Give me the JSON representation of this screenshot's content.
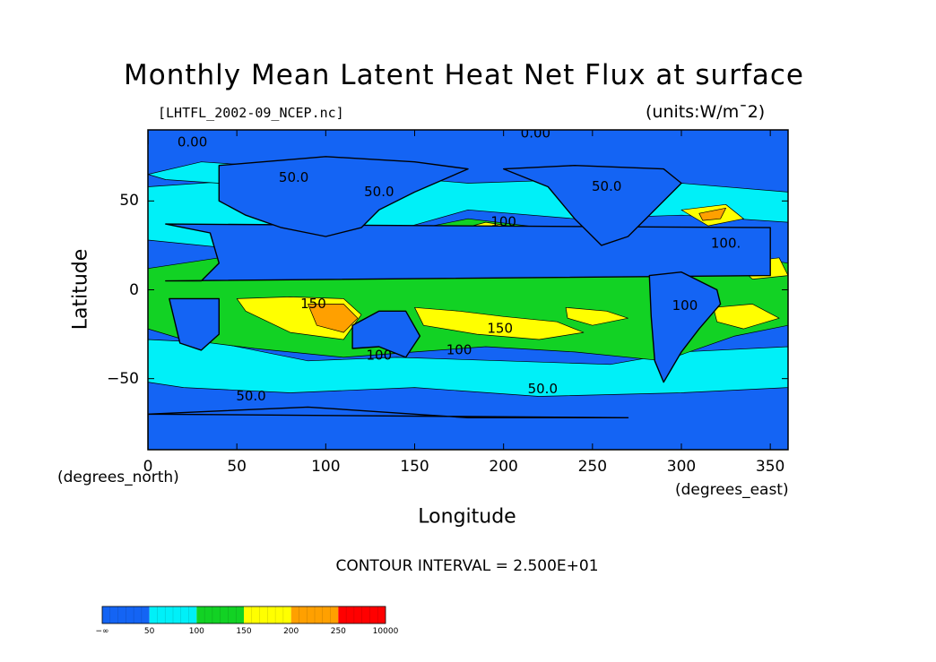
{
  "chart_data": {
    "type": "heatmap",
    "title": "Monthly Mean Latent Heat Net Flux at surface",
    "subtitle": "[LHTFL_2002-09_NCEP.nc]",
    "units": "(units:W/m¯2)",
    "xlabel": "Longitude",
    "ylabel": "Latitude",
    "x_unit_label": "(degrees_east)",
    "y_unit_label": "(degrees_north)",
    "xlim": [
      0,
      360
    ],
    "ylim": [
      -90,
      90
    ],
    "x_ticks": [
      0,
      50,
      100,
      150,
      200,
      250,
      300,
      350
    ],
    "x_tick_labels": [
      "0",
      "50",
      "100",
      "150",
      "200",
      "250",
      "300",
      "350"
    ],
    "y_ticks": [
      50,
      0,
      -50
    ],
    "y_tick_labels": [
      "50",
      "0",
      "−50"
    ],
    "contour_interval": "CONTOUR INTERVAL = 2.500E+01",
    "contour_labels": [
      {
        "text": "0.00",
        "lon": 25,
        "lat": 83
      },
      {
        "text": "0.00",
        "lon": 218,
        "lat": 88
      },
      {
        "text": "50.0",
        "lon": 82,
        "lat": 63
      },
      {
        "text": "50.0",
        "lon": 130,
        "lat": 55
      },
      {
        "text": "50.0",
        "lon": 258,
        "lat": 58
      },
      {
        "text": "100",
        "lon": 200,
        "lat": 38
      },
      {
        "text": "100.",
        "lon": 325,
        "lat": 26
      },
      {
        "text": "150",
        "lon": 93,
        "lat": -8
      },
      {
        "text": "150",
        "lon": 198,
        "lat": -22
      },
      {
        "text": "100",
        "lon": 130,
        "lat": -37
      },
      {
        "text": "100",
        "lon": 175,
        "lat": -34
      },
      {
        "text": "50.0",
        "lon": 58,
        "lat": -60
      },
      {
        "text": "50.0",
        "lon": 222,
        "lat": -56
      },
      {
        "text": "100",
        "lon": 302,
        "lat": -9
      }
    ],
    "colorbar": {
      "levels": [
        "−∞",
        "50",
        "100",
        "150",
        "200",
        "250",
        "10000"
      ],
      "colors": [
        "#1464f4",
        "#00f0f8",
        "#12d224",
        "#ffff00",
        "#ffa000",
        "#ff0000"
      ]
    },
    "colors": {
      "background": "#1464f4",
      "low": "#00f0f8",
      "mid": "#12d224",
      "high": "#ffff00",
      "higher": "#ffa000",
      "max": "#ff0000"
    }
  }
}
